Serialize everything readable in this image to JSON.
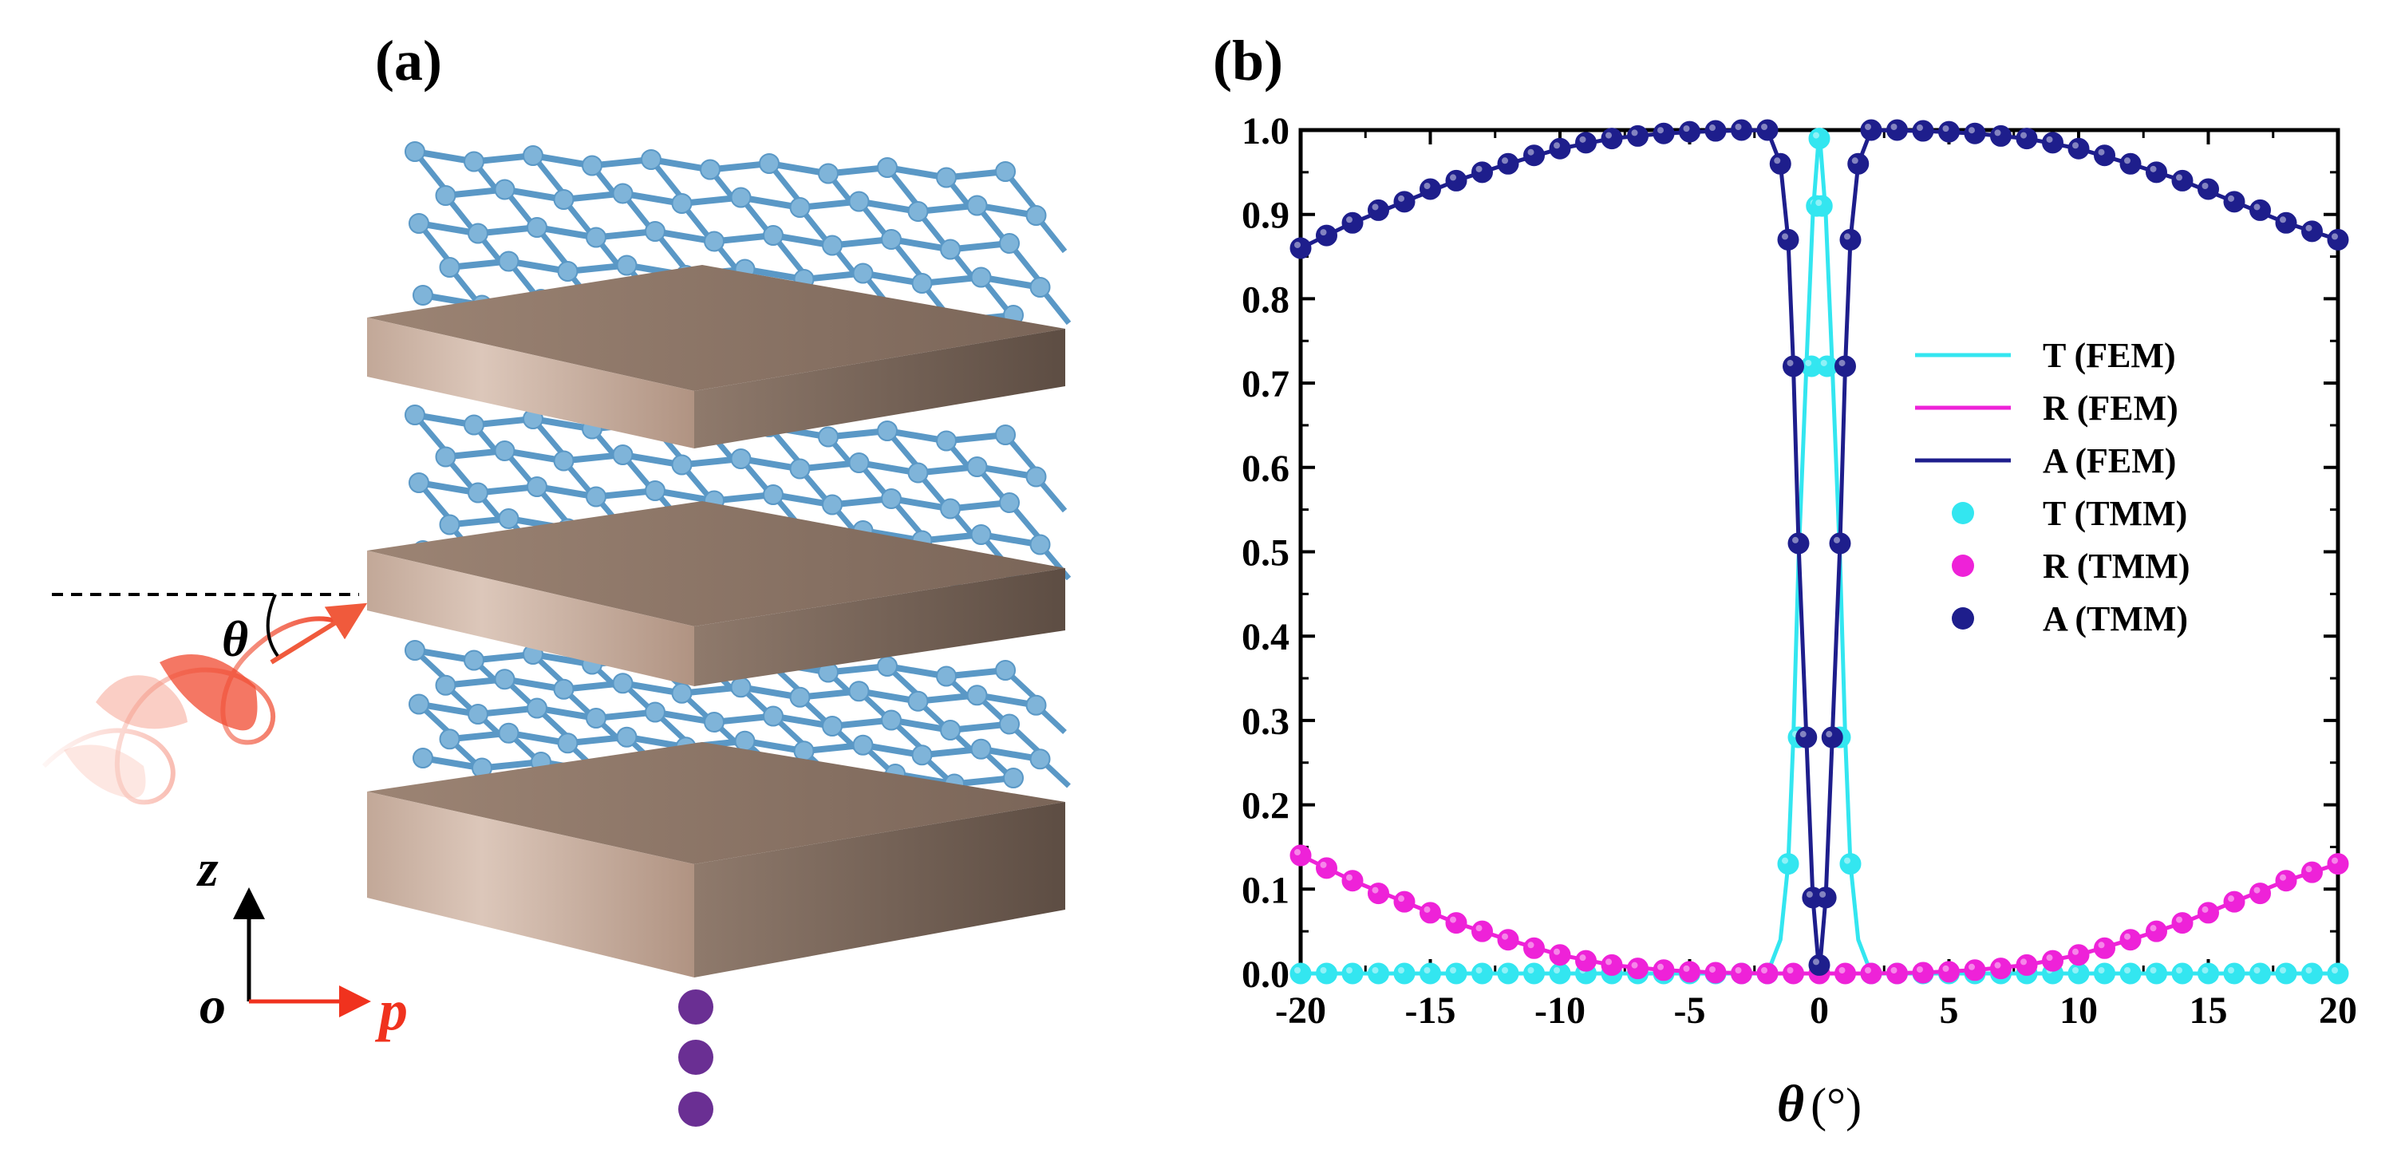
{
  "figure": {
    "panel_a_label": "(a)",
    "panel_b_label": "(b)",
    "schematic": {
      "angle_symbol": "θ",
      "axis_z": "z",
      "axis_o": "o",
      "axis_p": "p",
      "colors": {
        "graphene": "#7fb4d9",
        "graphene_bond": "#5a98c6",
        "slab_front": "#c9ae9e",
        "slab_side": "#7d6a5d",
        "wave": "#f05a3c",
        "arrow": "#f05a3c",
        "dots": "#6a2f93"
      },
      "icons": [
        "graphene-layer",
        "dielectric-slab",
        "incident-wave",
        "coordinate-axes",
        "continuation-dots"
      ]
    }
  },
  "chart_data": {
    "type": "line",
    "xlabel_symbol": "θ",
    "xlabel_unit": "(°)",
    "ylabel": "",
    "xlim": [
      -20,
      20
    ],
    "ylim": [
      0,
      1.0
    ],
    "x_ticks": [
      -20,
      -15,
      -10,
      -5,
      0,
      5,
      10,
      15,
      20
    ],
    "x_tick_labels": [
      "-20",
      "-15",
      "-10",
      "-5",
      "0",
      "5",
      "10",
      "15",
      "20"
    ],
    "y_ticks": [
      0.0,
      0.1,
      0.2,
      0.3,
      0.4,
      0.5,
      0.6,
      0.7,
      0.8,
      0.9,
      1.0
    ],
    "y_tick_labels": [
      "0.0",
      "0.1",
      "0.2",
      "0.3",
      "0.4",
      "0.5",
      "0.6",
      "0.7",
      "0.8",
      "0.9",
      "1.0"
    ],
    "grid": false,
    "legend_position": "right-middle",
    "colors": {
      "T": "#33e6f0",
      "R": "#ee22d8",
      "A": "#1e1e8c"
    },
    "series": [
      {
        "name": "T (FEM)",
        "kind": "line",
        "color": "#33e6f0",
        "x": [
          -20,
          -5,
          -2,
          -1.5,
          -1.2,
          -1,
          -0.8,
          -0.5,
          -0.25,
          0,
          0.25,
          0.5,
          0.8,
          1,
          1.2,
          1.5,
          2,
          5,
          20
        ],
        "y": [
          0,
          0,
          0,
          0.04,
          0.13,
          0.28,
          0.49,
          0.72,
          0.9,
          1.0,
          0.9,
          0.72,
          0.49,
          0.28,
          0.13,
          0.04,
          0,
          0,
          0
        ]
      },
      {
        "name": "R (FEM)",
        "kind": "line",
        "color": "#ee22d8",
        "x": [
          -20,
          -18,
          -16,
          -14,
          -12,
          -10,
          -8,
          -6,
          -4,
          -2,
          0,
          2,
          4,
          6,
          8,
          10,
          12,
          14,
          16,
          18,
          20
        ],
        "y": [
          0.14,
          0.11,
          0.085,
          0.06,
          0.04,
          0.022,
          0.01,
          0.004,
          0.001,
          0,
          0,
          0,
          0.001,
          0.004,
          0.01,
          0.022,
          0.04,
          0.06,
          0.085,
          0.11,
          0.13
        ]
      },
      {
        "name": "A (FEM)",
        "kind": "line",
        "color": "#1e1e8c",
        "x": [
          -20,
          -18,
          -16,
          -14,
          -12,
          -10,
          -8,
          -6,
          -4,
          -2,
          -1.5,
          -1.2,
          -1,
          -0.8,
          -0.5,
          -0.25,
          0,
          0.25,
          0.5,
          0.8,
          1,
          1.2,
          1.5,
          2,
          4,
          6,
          8,
          10,
          12,
          14,
          16,
          18,
          20
        ],
        "y": [
          0.86,
          0.89,
          0.915,
          0.94,
          0.96,
          0.978,
          0.99,
          0.996,
          0.999,
          1.0,
          0.96,
          0.87,
          0.72,
          0.51,
          0.28,
          0.09,
          0.0,
          0.09,
          0.28,
          0.51,
          0.72,
          0.87,
          0.96,
          1.0,
          0.999,
          0.996,
          0.99,
          0.978,
          0.96,
          0.94,
          0.915,
          0.89,
          0.87
        ]
      },
      {
        "name": "T (TMM)",
        "kind": "markers",
        "color": "#33e6f0",
        "x": [
          -20,
          -19,
          -18,
          -17,
          -16,
          -15,
          -14,
          -13,
          -12,
          -11,
          -10,
          -9,
          -8,
          -7,
          -6,
          -5,
          -4,
          -3,
          -2,
          -1.2,
          -0.8,
          -0.3,
          -0.1,
          0,
          0.1,
          0.3,
          0.8,
          1.2,
          2,
          3,
          4,
          5,
          6,
          7,
          8,
          9,
          10,
          11,
          12,
          13,
          14,
          15,
          16,
          17,
          18,
          19,
          20
        ],
        "y": [
          0,
          0,
          0,
          0,
          0,
          0,
          0,
          0,
          0,
          0,
          0,
          0,
          0,
          0,
          0,
          0,
          0,
          0,
          0,
          0.13,
          0.28,
          0.72,
          0.91,
          0.99,
          0.91,
          0.72,
          0.28,
          0.13,
          0,
          0,
          0,
          0,
          0,
          0,
          0,
          0,
          0,
          0,
          0,
          0,
          0,
          0,
          0,
          0,
          0,
          0,
          0
        ]
      },
      {
        "name": "R (TMM)",
        "kind": "markers",
        "color": "#ee22d8",
        "x": [
          -20,
          -19,
          -18,
          -17,
          -16,
          -15,
          -14,
          -13,
          -12,
          -11,
          -10,
          -9,
          -8,
          -7,
          -6,
          -5,
          -4,
          -3,
          -2,
          -1,
          0,
          1,
          2,
          3,
          4,
          5,
          6,
          7,
          8,
          9,
          10,
          11,
          12,
          13,
          14,
          15,
          16,
          17,
          18,
          19,
          20
        ],
        "y": [
          0.14,
          0.125,
          0.11,
          0.095,
          0.085,
          0.072,
          0.06,
          0.05,
          0.04,
          0.03,
          0.022,
          0.015,
          0.01,
          0.006,
          0.004,
          0.002,
          0.001,
          0,
          0,
          0,
          0,
          0,
          0,
          0,
          0.001,
          0.002,
          0.004,
          0.006,
          0.01,
          0.015,
          0.022,
          0.03,
          0.04,
          0.05,
          0.06,
          0.072,
          0.085,
          0.095,
          0.11,
          0.12,
          0.13
        ]
      },
      {
        "name": "A (TMM)",
        "kind": "markers",
        "color": "#1e1e8c",
        "x": [
          -20,
          -19,
          -18,
          -17,
          -16,
          -15,
          -14,
          -13,
          -12,
          -11,
          -10,
          -9,
          -8,
          -7,
          -6,
          -5,
          -4,
          -3,
          -2,
          -1.5,
          -1.2,
          -1,
          -0.8,
          -0.5,
          -0.25,
          0,
          0.25,
          0.5,
          0.8,
          1,
          1.2,
          1.5,
          2,
          3,
          4,
          5,
          6,
          7,
          8,
          9,
          10,
          11,
          12,
          13,
          14,
          15,
          16,
          17,
          18,
          19,
          20
        ],
        "y": [
          0.86,
          0.875,
          0.89,
          0.905,
          0.915,
          0.93,
          0.94,
          0.95,
          0.96,
          0.97,
          0.978,
          0.985,
          0.99,
          0.993,
          0.996,
          0.998,
          0.999,
          1.0,
          1.0,
          0.96,
          0.87,
          0.72,
          0.51,
          0.28,
          0.09,
          0.01,
          0.09,
          0.28,
          0.51,
          0.72,
          0.87,
          0.96,
          1.0,
          1.0,
          0.999,
          0.998,
          0.996,
          0.993,
          0.99,
          0.985,
          0.978,
          0.97,
          0.96,
          0.95,
          0.94,
          0.93,
          0.915,
          0.905,
          0.89,
          0.88,
          0.87
        ]
      }
    ],
    "legend": [
      {
        "label": "T (FEM)",
        "kind": "line",
        "color": "#33e6f0"
      },
      {
        "label": "R (FEM)",
        "kind": "line",
        "color": "#ee22d8"
      },
      {
        "label": "A (FEM)",
        "kind": "line",
        "color": "#1e1e8c"
      },
      {
        "label": "T (TMM)",
        "kind": "markers",
        "color": "#33e6f0"
      },
      {
        "label": "R (TMM)",
        "kind": "markers",
        "color": "#ee22d8"
      },
      {
        "label": "A (TMM)",
        "kind": "markers",
        "color": "#1e1e8c"
      }
    ]
  }
}
